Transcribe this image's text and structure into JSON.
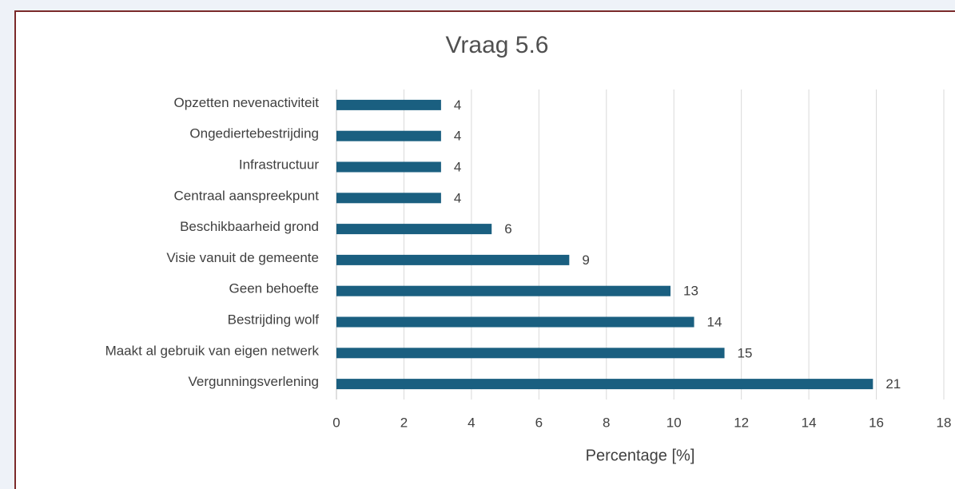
{
  "chart_data": {
    "type": "bar",
    "orientation": "horizontal",
    "title": "Vraag 5.6",
    "xlabel": "Percentage [%]",
    "categories": [
      "Opzetten nevenactiviteit",
      "Ongediertebestrijding",
      "Infrastructuur",
      "Centraal aanspreekpunt",
      "Beschikbaarheid grond",
      "Visie vanuit de gemeente",
      "Geen behoefte",
      "Bestrijding wolf",
      "Maakt al gebruik van eigen netwerk",
      "Vergunningsverlening"
    ],
    "values": [
      3.1,
      3.1,
      3.1,
      3.1,
      4.6,
      6.9,
      9.9,
      10.6,
      11.5,
      15.9
    ],
    "value_labels": [
      "4",
      "4",
      "4",
      "4",
      "6",
      "9",
      "13",
      "14",
      "15",
      "21"
    ],
    "color": "#1a5f80",
    "xlim": [
      0,
      18
    ],
    "xticks": [
      0,
      2,
      4,
      6,
      8,
      10,
      12,
      14,
      16,
      18
    ],
    "grid": true
  }
}
